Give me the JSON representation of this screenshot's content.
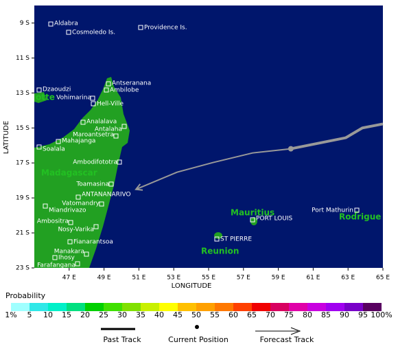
{
  "map": {
    "x_label": "LONGITUDE",
    "y_label": "LATITUDE",
    "xlim": [
      45,
      65
    ],
    "ylim": [
      8,
      23
    ],
    "xticks": [
      {
        "value": 47,
        "label": "47 E"
      },
      {
        "value": 49,
        "label": "49 E"
      },
      {
        "value": 51,
        "label": "51 E"
      },
      {
        "value": 53,
        "label": "53 E"
      },
      {
        "value": 55,
        "label": "55 E"
      },
      {
        "value": 57,
        "label": "57 E"
      },
      {
        "value": 59,
        "label": "59 E"
      },
      {
        "value": 61,
        "label": "61 E"
      },
      {
        "value": 63,
        "label": "63 E"
      },
      {
        "value": 65,
        "label": "65 E"
      }
    ],
    "yticks": [
      {
        "value": 9,
        "label": "9 S"
      },
      {
        "value": 11,
        "label": "11 S"
      },
      {
        "value": 13,
        "label": "13 S"
      },
      {
        "value": 15,
        "label": "15 S"
      },
      {
        "value": 17,
        "label": "17 S"
      },
      {
        "value": 19,
        "label": "19 S"
      },
      {
        "value": 21,
        "label": "21 S"
      },
      {
        "value": 23,
        "label": "23 S"
      }
    ],
    "places": [
      "Aldabra",
      "Cosmoledo Is.",
      "Providence Is.",
      "Dzaoudzi",
      "Antseranana",
      "Ambilobe",
      "Vohimarina",
      "Hell-Ville",
      "Analalava",
      "Antalaha",
      "Maroantsetra",
      "Mahajanga",
      "Soalala",
      "Ambodifototra",
      "Toamasina",
      "ANTANANARIVO",
      "Vatomandry",
      "Miandrivazo",
      "Ambositra",
      "Nosy-Varika",
      "Fianarantsoa",
      "Manakara",
      "Ihosy",
      "Farafangana",
      "PORT LOUIS",
      "ST PIERRE",
      "Port Mathurin"
    ],
    "regions": [
      "otte",
      "Madagascar",
      "Mauritius",
      "Reunion",
      "Rodrigue"
    ],
    "past_track": {
      "lon": [
        65.0,
        63.82,
        62.87,
        59.72
      ],
      "lat": [
        14.77,
        15.0,
        15.56,
        16.19
      ]
    },
    "current_position": {
      "lon": 59.72,
      "lat": 16.19
    },
    "forecast_track": {
      "lon": [
        59.72,
        57.52,
        55.24,
        53.19,
        50.83
      ],
      "lat": [
        16.19,
        16.43,
        16.98,
        17.53,
        18.51
      ]
    }
  },
  "probability": {
    "title": "Probability",
    "labels": [
      "1%",
      "5",
      "10",
      "15",
      "20",
      "25",
      "30",
      "35",
      "40",
      "45",
      "50",
      "55",
      "60",
      "65",
      "70",
      "75",
      "80",
      "85",
      "90",
      "95",
      "100%"
    ],
    "colors": [
      "#a0ffff",
      "#30e8e8",
      "#00f0c8",
      "#00e080",
      "#00d000",
      "#40e000",
      "#80e000",
      "#c8f000",
      "#ffff00",
      "#ffc000",
      "#ffa000",
      "#ff7800",
      "#ff4000",
      "#f00000",
      "#d80060",
      "#e000a8",
      "#c800e0",
      "#a000f0",
      "#7800c8",
      "#580060"
    ]
  },
  "legend": {
    "past": "Past Track",
    "current": "Current Position",
    "forecast": "Forecast Track"
  }
}
